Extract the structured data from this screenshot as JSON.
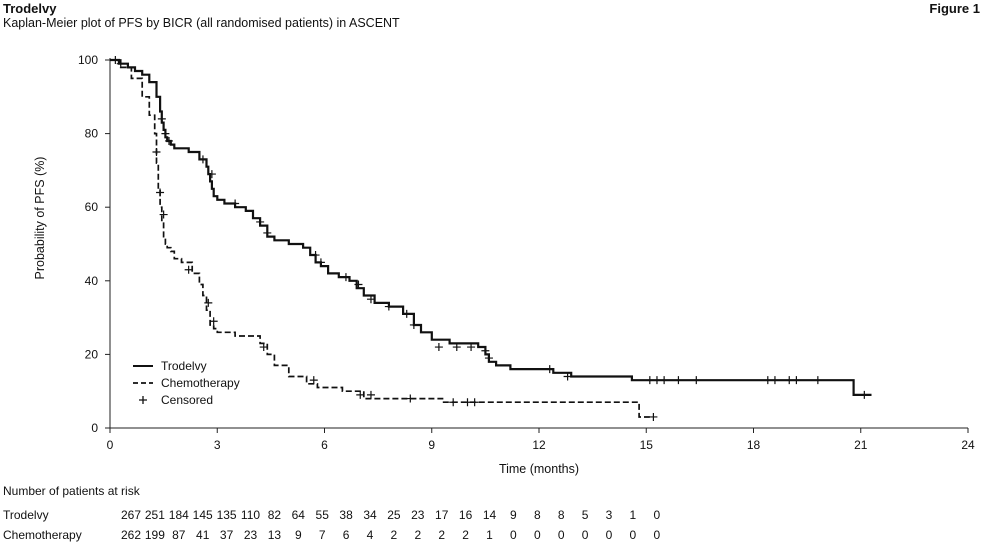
{
  "header": {
    "product": "Trodelvy",
    "subtitle": "Kaplan-Meier plot of PFS by BICR (all randomised patients) in ASCENT",
    "figure_label": "Figure 1"
  },
  "chart_data": {
    "type": "line",
    "title": "Kaplan-Meier plot of PFS by BICR (all randomised patients) in ASCENT",
    "xlabel": "Time (months)",
    "ylabel": "Probability of PFS (%)",
    "xlim": [
      0,
      24
    ],
    "ylim": [
      0,
      100
    ],
    "xticks": [
      0,
      3,
      6,
      9,
      12,
      15,
      18,
      21,
      24
    ],
    "yticks": [
      0,
      20,
      40,
      60,
      80,
      100
    ],
    "grid": false,
    "legend_position": "lower-left",
    "legend": [
      {
        "label": "Trodelvy",
        "style": "solid"
      },
      {
        "label": "Chemotherapy",
        "style": "dashed"
      },
      {
        "label": "Censored",
        "style": "marker"
      }
    ],
    "series": [
      {
        "name": "Trodelvy",
        "style": "solid",
        "step_x": [
          0,
          0.25,
          0.5,
          0.7,
          0.9,
          1.1,
          1.3,
          1.4,
          1.45,
          1.5,
          1.55,
          1.6,
          1.7,
          1.8,
          2.2,
          2.5,
          2.7,
          2.75,
          2.8,
          2.85,
          2.9,
          3.0,
          3.2,
          3.5,
          3.8,
          4.0,
          4.2,
          4.4,
          4.6,
          5.0,
          5.4,
          5.6,
          5.75,
          5.9,
          6.1,
          6.4,
          6.7,
          6.9,
          7.1,
          7.4,
          7.8,
          8.2,
          8.5,
          8.7,
          9.0,
          9.5,
          10.3,
          10.5,
          10.6,
          10.8,
          11.2,
          12.0,
          12.4,
          12.9,
          13.7,
          14.6,
          20.8,
          21.3
        ],
        "step_y": [
          100,
          99,
          98,
          97,
          96,
          94,
          90,
          86,
          83,
          81,
          79,
          78,
          77,
          76,
          75,
          73,
          71,
          69,
          67,
          65,
          63,
          62,
          61,
          60,
          59,
          57,
          55,
          52,
          51,
          50,
          49,
          47,
          45,
          44,
          42,
          41,
          40,
          38,
          36,
          34,
          33,
          31,
          28,
          26,
          24,
          23,
          22,
          20,
          18,
          17,
          16,
          16,
          15,
          14,
          14,
          13,
          9,
          9
        ],
        "censored": [
          [
            0.15,
            100
          ],
          [
            0.3,
            99
          ],
          [
            1.45,
            84
          ],
          [
            1.55,
            80
          ],
          [
            1.65,
            78
          ],
          [
            2.6,
            73
          ],
          [
            2.85,
            69
          ],
          [
            3.5,
            61
          ],
          [
            4.2,
            56
          ],
          [
            4.4,
            53
          ],
          [
            5.75,
            47
          ],
          [
            5.9,
            45
          ],
          [
            6.6,
            41
          ],
          [
            6.95,
            39
          ],
          [
            7.3,
            35
          ],
          [
            7.8,
            33
          ],
          [
            8.3,
            31
          ],
          [
            8.5,
            28
          ],
          [
            9.2,
            22
          ],
          [
            9.7,
            22
          ],
          [
            10.1,
            22
          ],
          [
            10.5,
            21
          ],
          [
            10.6,
            19
          ],
          [
            12.3,
            16
          ],
          [
            12.8,
            14
          ],
          [
            15.1,
            13
          ],
          [
            15.3,
            13
          ],
          [
            15.5,
            13
          ],
          [
            15.9,
            13
          ],
          [
            16.4,
            13
          ],
          [
            18.4,
            13
          ],
          [
            18.6,
            13
          ],
          [
            19.0,
            13
          ],
          [
            19.2,
            13
          ],
          [
            19.8,
            13
          ],
          [
            21.1,
            9
          ]
        ]
      },
      {
        "name": "Chemotherapy",
        "style": "dashed",
        "step_x": [
          0,
          0.3,
          0.6,
          0.9,
          1.1,
          1.25,
          1.3,
          1.35,
          1.4,
          1.45,
          1.5,
          1.55,
          1.6,
          1.7,
          1.8,
          2.0,
          2.3,
          2.5,
          2.6,
          2.7,
          2.8,
          2.9,
          3.0,
          3.5,
          4.2,
          4.4,
          4.6,
          5.0,
          5.5,
          5.8,
          6.5,
          7.1,
          7.4,
          9.3,
          14.8,
          15.1
        ],
        "step_y": [
          100,
          98,
          95,
          90,
          85,
          80,
          72,
          65,
          60,
          56,
          52,
          50,
          49,
          48,
          46,
          45,
          42,
          39,
          36,
          32,
          28,
          27,
          26,
          25,
          23,
          20,
          17,
          14,
          12,
          11,
          10,
          8,
          8,
          7,
          3,
          3
        ],
        "censored": [
          [
            1.3,
            75
          ],
          [
            1.4,
            64
          ],
          [
            1.5,
            58
          ],
          [
            2.2,
            43
          ],
          [
            2.75,
            34
          ],
          [
            2.9,
            29
          ],
          [
            4.3,
            22
          ],
          [
            5.7,
            13
          ],
          [
            7.0,
            9
          ],
          [
            7.3,
            9
          ],
          [
            8.4,
            8
          ],
          [
            9.6,
            7
          ],
          [
            10.0,
            7
          ],
          [
            10.2,
            7
          ],
          [
            15.2,
            3
          ]
        ]
      }
    ]
  },
  "risk_table": {
    "title": "Number of patients at risk",
    "rows": [
      {
        "label": "Trodelvy",
        "values": [
          "267",
          "251",
          "184",
          "145",
          "135",
          "110",
          "82",
          "64",
          "55",
          "38",
          "34",
          "25",
          "23",
          "17",
          "16",
          "14",
          "9",
          "8",
          "8",
          "5",
          "3",
          "1",
          "0"
        ]
      },
      {
        "label": "Chemotherapy",
        "values": [
          "262",
          "199",
          "87",
          "41",
          "37",
          "23",
          "13",
          "9",
          "7",
          "6",
          "4",
          "2",
          "2",
          "2",
          "2",
          "1",
          "0",
          "0",
          "0",
          "0",
          "0",
          "0",
          "0"
        ]
      }
    ]
  }
}
